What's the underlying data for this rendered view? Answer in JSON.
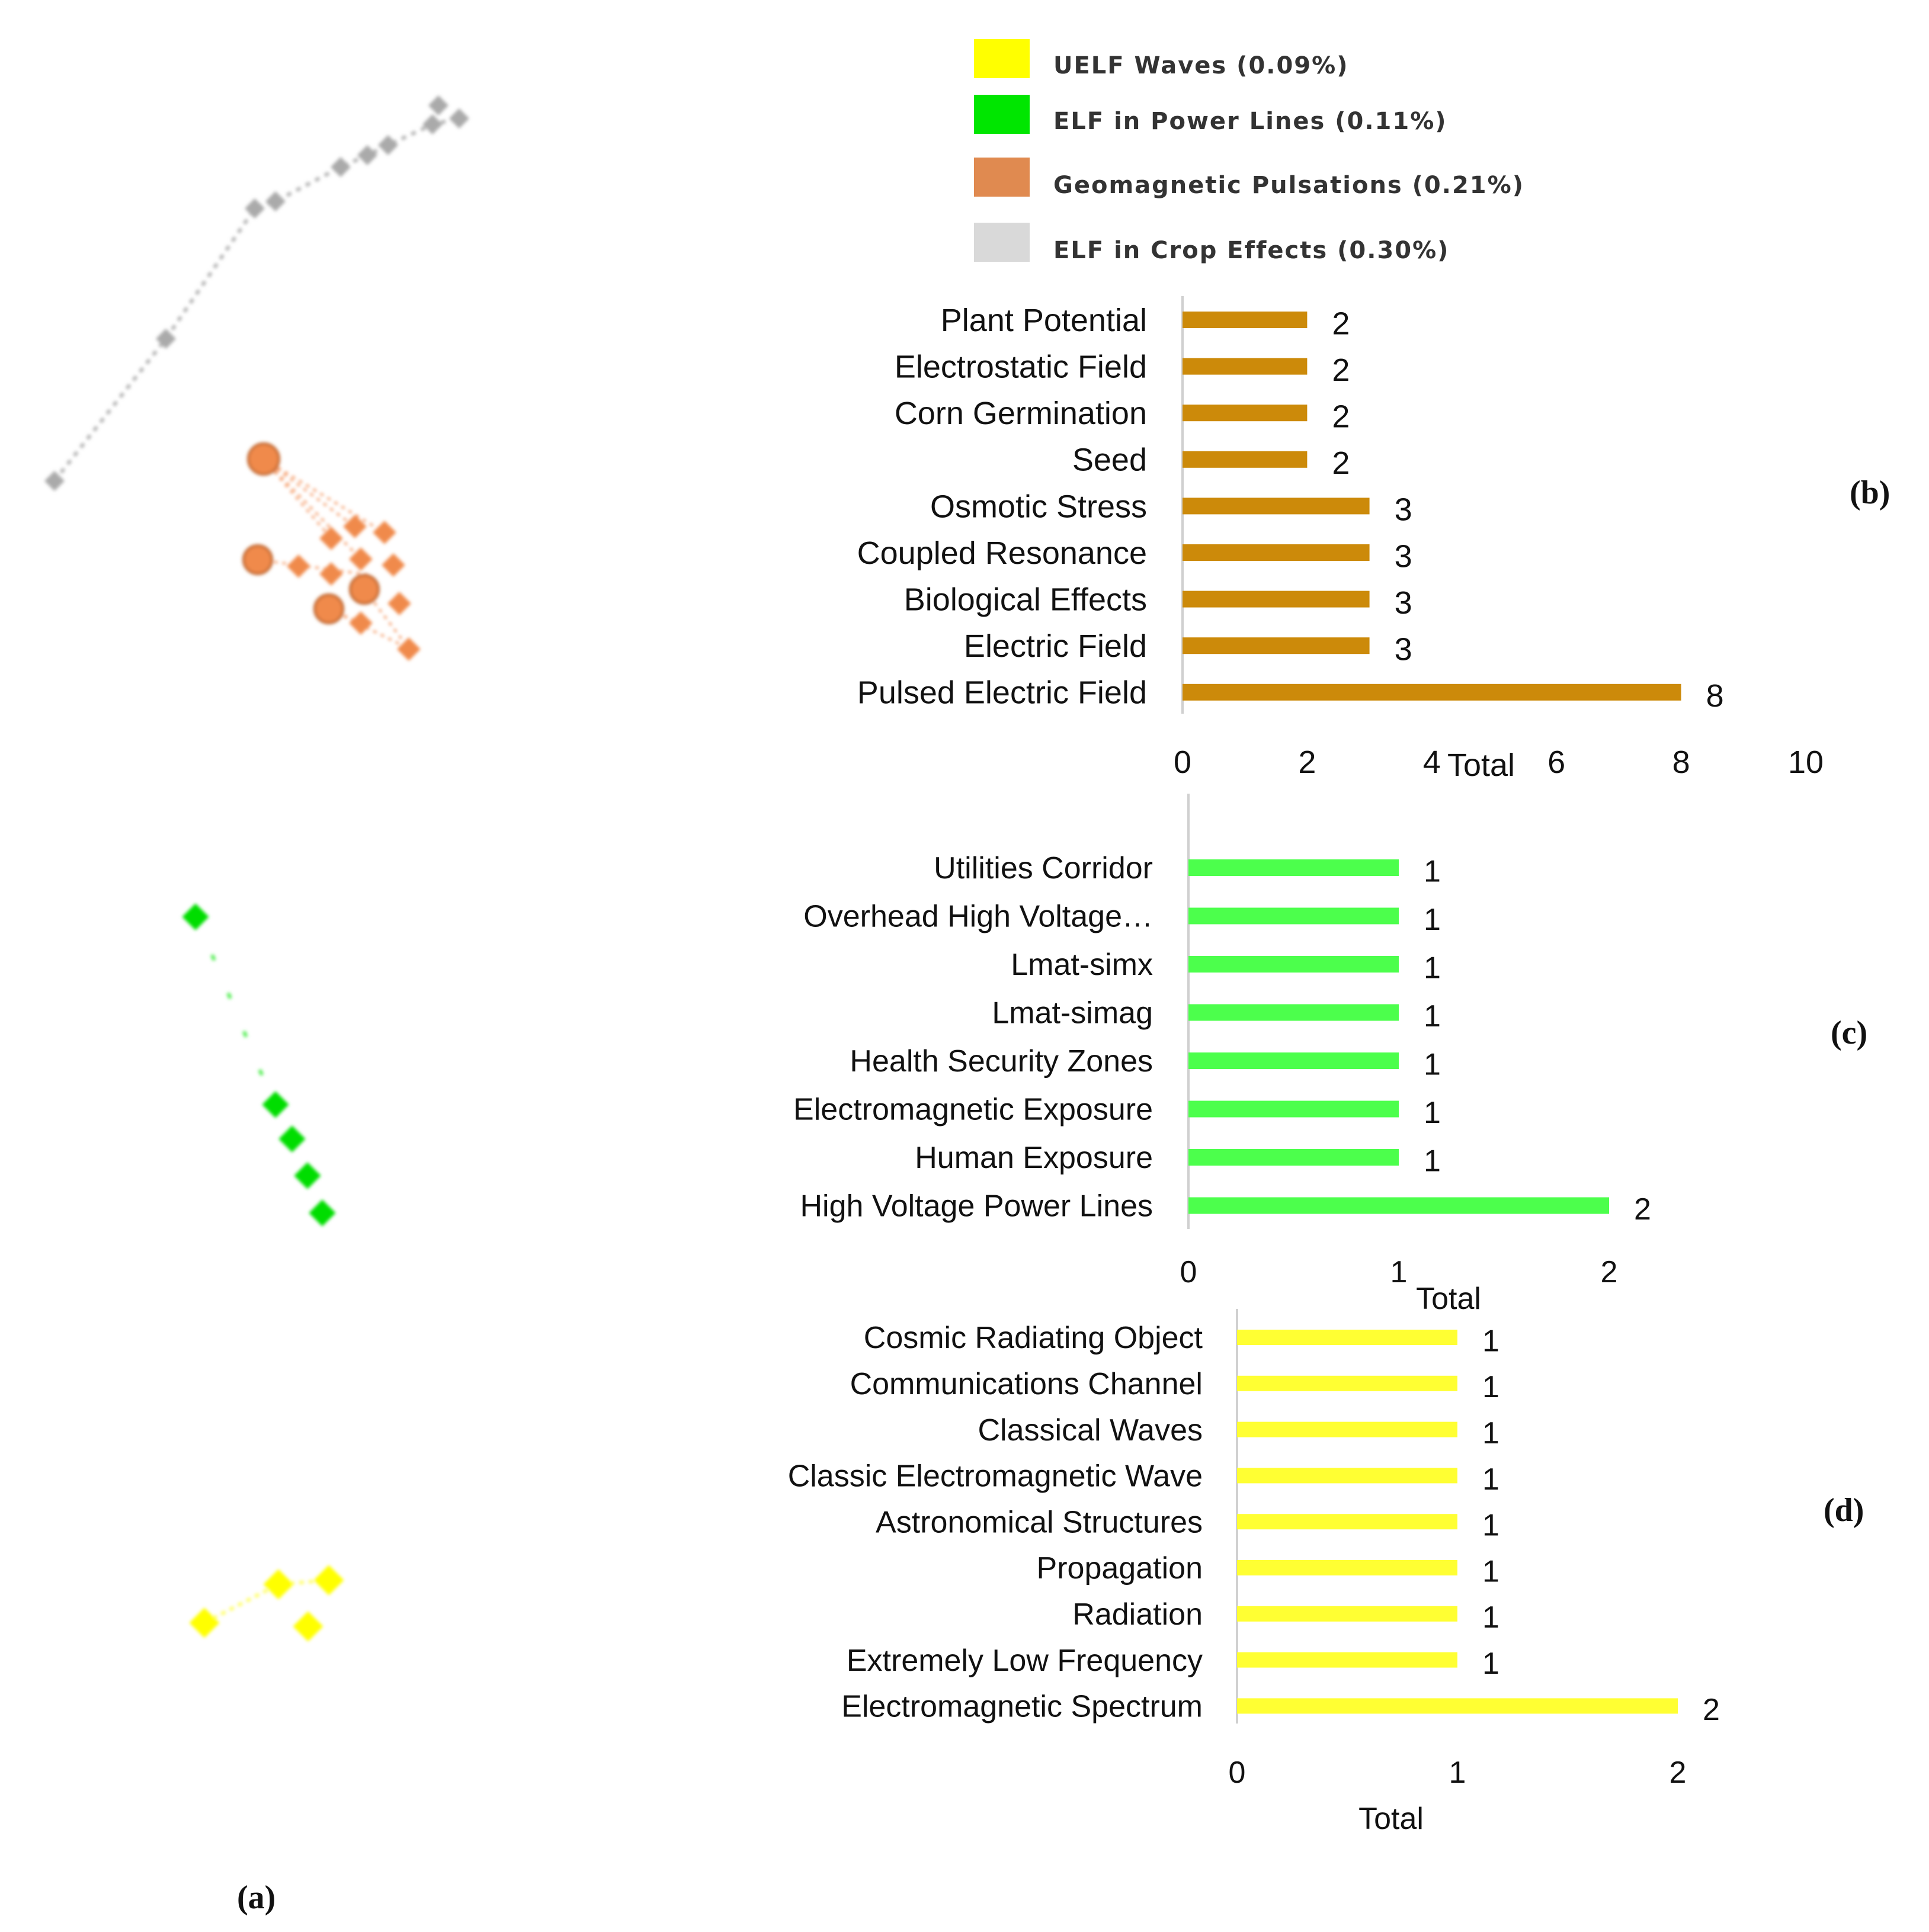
{
  "legend": [
    {
      "label": "UELF Waves (0.09%)",
      "color": "#ffff00"
    },
    {
      "label": "ELF in Power Lines (0.11%)",
      "color": "#00e600"
    },
    {
      "label": "Geomagnetic Pulsations (0.21%)",
      "color": "#e08a50"
    },
    {
      "label": "ELF in Crop Effects (0.30%)",
      "color": "#d9d9d9"
    }
  ],
  "panels": {
    "a": "(a)",
    "b": "(b)",
    "c": "(c)",
    "d": "(d)"
  },
  "network": {
    "clusters": [
      {
        "name": "ELF in Crop Effects",
        "color": "#aaaaaa"
      },
      {
        "name": "Geomagnetic Pulsations",
        "color": "#f08a4b"
      },
      {
        "name": "ELF in Power Lines",
        "color": "#00dd00"
      },
      {
        "name": "UELF Waves",
        "color": "#ffff00"
      }
    ]
  },
  "chart_data": [
    {
      "id": "b",
      "type": "bar",
      "orientation": "horizontal",
      "categories": [
        "Plant Potential",
        "Electrostatic Field",
        "Corn Germination",
        "Seed",
        "Osmotic Stress",
        "Coupled Resonance",
        "Biological Effects",
        "Electric Field",
        "Pulsed Electric Field"
      ],
      "values": [
        2,
        2,
        2,
        2,
        3,
        3,
        3,
        3,
        8
      ],
      "value_labels": [
        "2",
        "2",
        "2",
        "2",
        "3",
        "3",
        "3",
        "3",
        "8"
      ],
      "xlabel": "Total",
      "xlim": [
        0,
        10
      ],
      "ticks": [
        0,
        2,
        4,
        6,
        8,
        10
      ],
      "tick_labels": [
        "0",
        "2",
        "4",
        "6",
        "8",
        "10"
      ],
      "color": "#cc8a0a"
    },
    {
      "id": "c",
      "type": "bar",
      "orientation": "horizontal",
      "categories": [
        "Utilities Corridor",
        "Overhead High Voltage…",
        "Lmat-simx",
        "Lmat-simag",
        "Health Security Zones",
        "Electromagnetic Exposure",
        "Human Exposure",
        "High Voltage Power Lines"
      ],
      "values": [
        1,
        1,
        1,
        1,
        1,
        1,
        1,
        2
      ],
      "value_labels": [
        "1",
        "1",
        "1",
        "1",
        "1",
        "1",
        "1",
        "2"
      ],
      "xlabel": "Total",
      "xlim": [
        0,
        2
      ],
      "ticks": [
        0,
        1,
        2
      ],
      "tick_labels": [
        "0",
        "1",
        "2"
      ],
      "color": "#4cff4c"
    },
    {
      "id": "d",
      "type": "bar",
      "orientation": "horizontal",
      "categories": [
        "Cosmic Radiating Object",
        "Communications Channel",
        "Classical Waves",
        "Classic Electromagnetic Wave",
        "Astronomical Structures",
        "Propagation",
        "Radiation",
        "Extremely Low Frequency",
        "Electromagnetic Spectrum"
      ],
      "values": [
        1,
        1,
        1,
        1,
        1,
        1,
        1,
        1,
        2
      ],
      "value_labels": [
        "1",
        "1",
        "1",
        "1",
        "1",
        "1",
        "1",
        "1",
        "2"
      ],
      "xlabel": "Total",
      "xlim": [
        0,
        2
      ],
      "ticks": [
        0,
        1,
        2
      ],
      "tick_labels": [
        "0",
        "1",
        "2"
      ],
      "color": "#ffff33"
    }
  ]
}
